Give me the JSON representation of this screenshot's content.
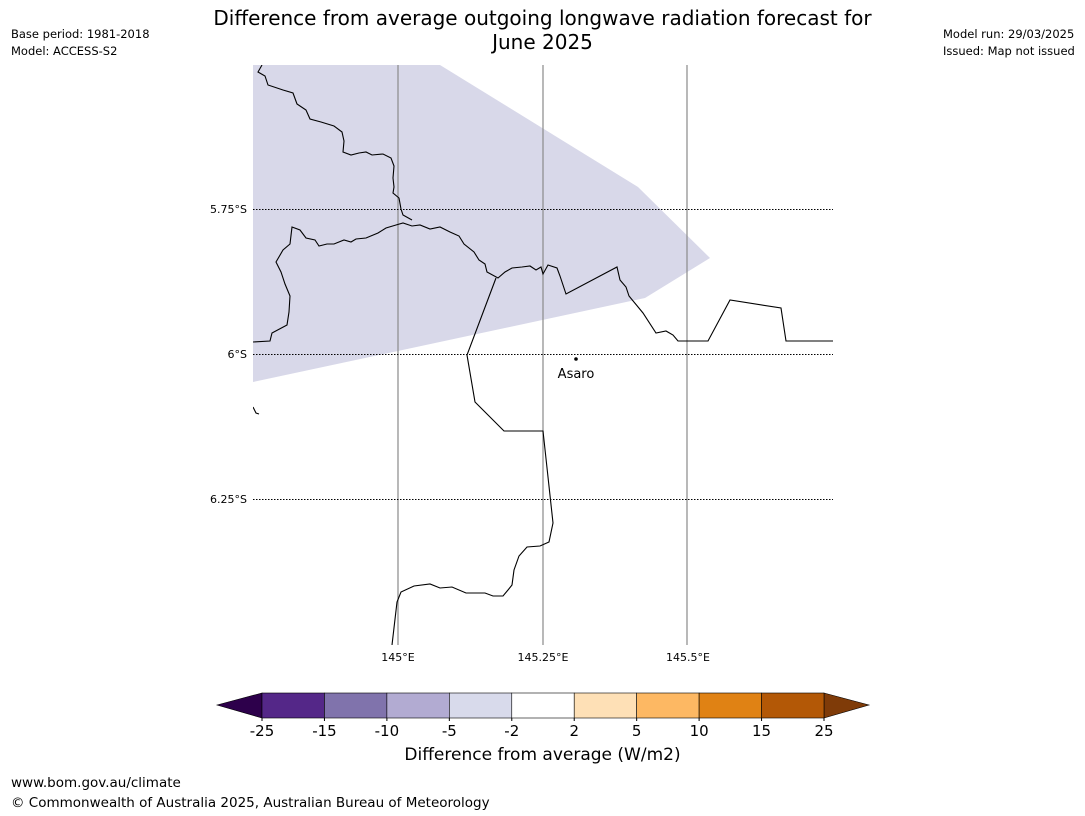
{
  "header": {
    "title_line1": "Difference from average outgoing longwave radiation forecast for",
    "title_line2": "June 2025",
    "base_period": "Base period: 1981-2018",
    "model": "Model: ACCESS-S2",
    "model_run": "Model run: 29/03/2025",
    "issued": "Issued: Map not issued"
  },
  "map": {
    "lat_labels": [
      "5.75°S",
      "6°S",
      "6.25°S"
    ],
    "lon_labels": [
      "145°E",
      "145.25°E",
      "145.5°E"
    ],
    "place": {
      "name": "Asaro"
    },
    "anomaly_fill_color": "#d8d8e9",
    "anomaly_category": "-5 to -2"
  },
  "colorbar": {
    "label": "Difference from average (W/m2)",
    "ticks": [
      "-25",
      "-15",
      "-10",
      "-5",
      "-2",
      "2",
      "5",
      "10",
      "15",
      "25"
    ],
    "colors": [
      "#542788",
      "#8073ac",
      "#b2abd2",
      "#d8daeb",
      "#ffffff",
      "#fee0b6",
      "#fdb863",
      "#e08214",
      "#b35806"
    ],
    "low_extend_color": "#2d004b",
    "high_extend_color": "#7f3b08"
  },
  "footer": {
    "url": "www.bom.gov.au/climate",
    "copyright": "© Commonwealth of Australia 2025, Australian Bureau of Meteorology"
  }
}
